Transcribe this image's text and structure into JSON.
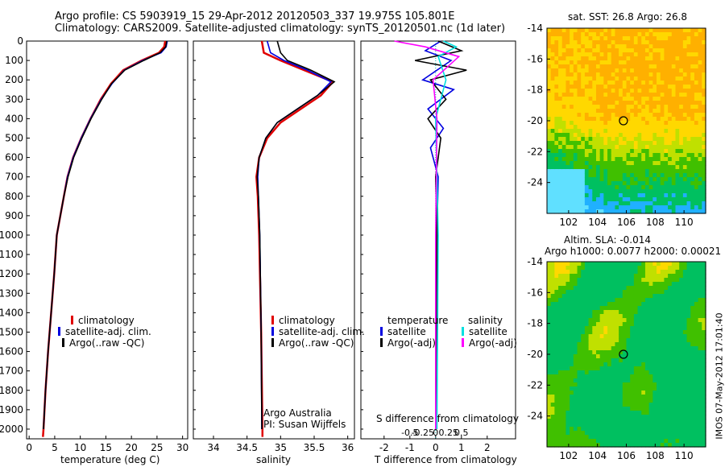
{
  "header": {
    "line1": "Argo profile: CS 5903919_15 29-Apr-2012 20120503_337 19.975S 105.801E",
    "line2": "Climatology: CARS2009. Satellite-adjusted climatology: synTS_20120501.nc (1d later)"
  },
  "colors": {
    "climatology": "#e00000",
    "satellite": "#0000e0",
    "argo": "#000000",
    "sal_satellite": "#00e0e0",
    "sal_argo": "#ff00ff",
    "diff_zero": "#00aaaa"
  },
  "chart_data": [
    {
      "id": "temperature",
      "type": "line",
      "xlabel": "temperature (deg C)",
      "ylabel": "",
      "xlim": [
        -0.5,
        31
      ],
      "ylim": [
        2050,
        0
      ],
      "xticks": [
        0,
        5,
        10,
        15,
        20,
        25,
        30
      ],
      "yticks": [
        0,
        100,
        200,
        300,
        400,
        500,
        600,
        700,
        800,
        900,
        1000,
        1100,
        1200,
        1300,
        1400,
        1500,
        1600,
        1700,
        1800,
        1900,
        2000
      ],
      "legend": [
        "climatology",
        "satellite-adj. clim.",
        "Argo(..raw -QC)"
      ],
      "series": [
        {
          "name": "climatology",
          "color": "#e00000",
          "points": [
            [
              26.6,
              0
            ],
            [
              26.4,
              30
            ],
            [
              25.4,
              60
            ],
            [
              22,
              100
            ],
            [
              18.4,
              150
            ],
            [
              16,
              220
            ],
            [
              14,
              300
            ],
            [
              12,
              400
            ],
            [
              10.2,
              500
            ],
            [
              8.6,
              600
            ],
            [
              7.5,
              700
            ],
            [
              6.8,
              800
            ],
            [
              6.1,
              900
            ],
            [
              5.4,
              1000
            ],
            [
              4.9,
              1200
            ],
            [
              4.3,
              1400
            ],
            [
              3.7,
              1600
            ],
            [
              3.2,
              1800
            ],
            [
              2.8,
              2000
            ],
            [
              2.7,
              2040
            ]
          ]
        },
        {
          "name": "satellite-adj. clim.",
          "color": "#0000e0",
          "points": [
            [
              27,
              0
            ],
            [
              26.8,
              30
            ],
            [
              25.8,
              60
            ],
            [
              22.2,
              100
            ],
            [
              18.6,
              150
            ],
            [
              16.2,
              220
            ],
            [
              14.1,
              300
            ],
            [
              12,
              400
            ],
            [
              10.2,
              500
            ],
            [
              8.6,
              600
            ],
            [
              7.5,
              700
            ],
            [
              6.8,
              800
            ],
            [
              6.1,
              900
            ],
            [
              5.4,
              1000
            ],
            [
              4.9,
              1200
            ],
            [
              4.3,
              1400
            ],
            [
              3.7,
              1600
            ],
            [
              3.2,
              1800
            ],
            [
              2.8,
              2000
            ]
          ]
        },
        {
          "name": "Argo(..raw -QC)",
          "color": "#000000",
          "points": [
            [
              26.9,
              0
            ],
            [
              26.7,
              30
            ],
            [
              25.6,
              60
            ],
            [
              22.4,
              100
            ],
            [
              18.7,
              150
            ],
            [
              16.1,
              220
            ],
            [
              14.2,
              300
            ],
            [
              12.1,
              400
            ],
            [
              10.3,
              500
            ],
            [
              8.7,
              600
            ],
            [
              7.6,
              700
            ],
            [
              6.8,
              800
            ],
            [
              6.1,
              900
            ],
            [
              5.4,
              1000
            ],
            [
              4.9,
              1200
            ],
            [
              4.3,
              1400
            ],
            [
              3.7,
              1600
            ],
            [
              3.2,
              1800
            ],
            [
              2.8,
              2000
            ]
          ]
        }
      ]
    },
    {
      "id": "salinity",
      "type": "line",
      "xlabel": "salinity",
      "xlim": [
        33.7,
        36.1
      ],
      "ylim": [
        2050,
        0
      ],
      "xticks": [
        34,
        34.5,
        35,
        35.5,
        36
      ],
      "legend": [
        "climatology",
        "satellite-adj. clim.",
        "Argo(..raw -QC)"
      ],
      "annotation": [
        "Argo Australia",
        "PI: Susan Wijffels"
      ],
      "series": [
        {
          "name": "climatology",
          "color": "#e00000",
          "points": [
            [
              34.72,
              0
            ],
            [
              34.75,
              60
            ],
            [
              35.0,
              100
            ],
            [
              35.35,
              150
            ],
            [
              35.78,
              210
            ],
            [
              35.6,
              280
            ],
            [
              35.3,
              350
            ],
            [
              35.0,
              420
            ],
            [
              34.8,
              500
            ],
            [
              34.68,
              600
            ],
            [
              34.64,
              700
            ],
            [
              34.66,
              800
            ],
            [
              34.68,
              1000
            ],
            [
              34.71,
              1500
            ],
            [
              34.73,
              2000
            ],
            [
              34.73,
              2040
            ]
          ]
        },
        {
          "name": "satellite-adj. clim.",
          "color": "#0000e0",
          "points": [
            [
              34.8,
              0
            ],
            [
              34.85,
              60
            ],
            [
              35.05,
              100
            ],
            [
              35.4,
              150
            ],
            [
              35.75,
              210
            ],
            [
              35.55,
              280
            ],
            [
              35.25,
              350
            ],
            [
              34.95,
              420
            ],
            [
              34.78,
              500
            ],
            [
              34.68,
              600
            ],
            [
              34.66,
              700
            ],
            [
              34.67,
              800
            ],
            [
              34.69,
              1000
            ],
            [
              34.71,
              1500
            ],
            [
              34.72,
              2000
            ]
          ]
        },
        {
          "name": "Argo(..raw -QC)",
          "color": "#000000",
          "points": [
            [
              34.95,
              0
            ],
            [
              35.0,
              60
            ],
            [
              35.1,
              100
            ],
            [
              35.45,
              150
            ],
            [
              35.8,
              210
            ],
            [
              35.55,
              280
            ],
            [
              35.25,
              350
            ],
            [
              34.95,
              420
            ],
            [
              34.78,
              500
            ],
            [
              34.68,
              600
            ],
            [
              34.65,
              700
            ],
            [
              34.67,
              800
            ],
            [
              34.69,
              1000
            ],
            [
              34.71,
              1500
            ],
            [
              34.72,
              2000
            ]
          ]
        }
      ]
    },
    {
      "id": "difference",
      "type": "line",
      "xlabel": "T difference from climatology",
      "xlabel_top": "S difference from climatology",
      "xlim": [
        -2.9,
        3.1
      ],
      "ylim": [
        2050,
        0
      ],
      "xticks": [
        -2,
        -1,
        0,
        1,
        2
      ],
      "xticklabels_top": [
        "-0.5",
        "-0.25",
        "0",
        "0.25",
        "0.5"
      ],
      "legend_temperature": {
        "title": "temperature",
        "items": [
          "satellite",
          "Argo(-adj)"
        ]
      },
      "legend_salinity": {
        "title": "salinity",
        "items": [
          "satellite",
          "Argo(-adj)"
        ]
      },
      "series": [
        {
          "name": "T satellite",
          "color": "#0000e0",
          "points": [
            [
              0.2,
              0
            ],
            [
              -0.4,
              50
            ],
            [
              0.6,
              100
            ],
            [
              -0.5,
              200
            ],
            [
              0.7,
              250
            ],
            [
              -0.3,
              350
            ],
            [
              0.3,
              450
            ],
            [
              -0.2,
              550
            ],
            [
              0.1,
              700
            ],
            [
              0.05,
              1000
            ],
            [
              0.0,
              2000
            ]
          ]
        },
        {
          "name": "T Argo(-adj)",
          "color": "#000000",
          "points": [
            [
              0.1,
              0
            ],
            [
              1.0,
              50
            ],
            [
              -0.8,
              100
            ],
            [
              1.2,
              150
            ],
            [
              -0.2,
              200
            ],
            [
              0.4,
              300
            ],
            [
              -0.3,
              400
            ],
            [
              0.2,
              500
            ],
            [
              0.0,
              700
            ],
            [
              0.05,
              1000
            ],
            [
              0.0,
              2000
            ]
          ]
        },
        {
          "name": "S satellite",
          "color": "#00e0e0",
          "points": [
            [
              0.3,
              0
            ],
            [
              0.8,
              30
            ],
            [
              0.1,
              80
            ],
            [
              0.4,
              200
            ],
            [
              0.0,
              400
            ],
            [
              0.1,
              1000
            ],
            [
              0.05,
              2000
            ]
          ]
        },
        {
          "name": "S Argo(-adj)",
          "color": "#ff00ff",
          "points": [
            [
              -1.6,
              0
            ],
            [
              -0.4,
              30
            ],
            [
              0.9,
              80
            ],
            [
              -0.1,
              200
            ],
            [
              0.05,
              400
            ],
            [
              0.0,
              1000
            ],
            [
              0.0,
              2000
            ]
          ]
        }
      ]
    },
    {
      "id": "sst-map",
      "type": "heatmap",
      "title": "sat. SST: 26.8  Argo: 26.8",
      "xticks": [
        102,
        104,
        106,
        108,
        110
      ],
      "yticks": [
        -14,
        -16,
        -18,
        -20,
        -22,
        -24
      ],
      "xlim": [
        100.5,
        111.5
      ],
      "ylim": [
        -26,
        -14
      ],
      "marker": {
        "lon": 105.8,
        "lat": -20.0
      }
    },
    {
      "id": "sla-map",
      "type": "heatmap",
      "title": "Altim. SLA: -0.014",
      "subtitle": "Argo h1000: 0.0077  h2000: 0.00021",
      "xticks": [
        102,
        104,
        106,
        108,
        110
      ],
      "yticks": [
        -14,
        -16,
        -18,
        -20,
        -22,
        -24
      ],
      "xlim": [
        100.5,
        111.5
      ],
      "ylim": [
        -26,
        -14
      ],
      "marker": {
        "lon": 105.8,
        "lat": -20.0
      }
    }
  ],
  "stamp": "IMOS 07-May-2012 17:01:40"
}
